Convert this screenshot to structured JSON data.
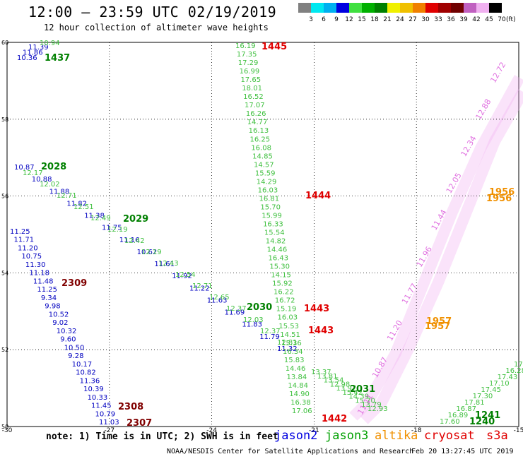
{
  "header": {
    "title": "12:00 — 23:59 UTC 02/19/2019",
    "subtitle": "12 hour collection of altimeter wave heights"
  },
  "legend": {
    "colors": [
      "#808080",
      "#00e8f0",
      "#00b0f0",
      "#0000e0",
      "#40e040",
      "#00b000",
      "#008000",
      "#f0f000",
      "#f0c000",
      "#f08000",
      "#e00000",
      "#a00000",
      "#700000",
      "#c060c0",
      "#f0b0f0",
      "#000000"
    ],
    "labels": [
      "3",
      "6",
      "9",
      "12",
      "15",
      "18",
      "21",
      "24",
      "27",
      "30",
      "33",
      "36",
      "39",
      "42",
      "45",
      "70"
    ],
    "unit": "(ft)"
  },
  "axes": {
    "x_ticks": [
      "-30",
      "-27",
      "-24",
      "-21",
      "-18",
      "-15"
    ],
    "y_ticks": [
      "60",
      "58",
      "56",
      "54",
      "52",
      "50"
    ]
  },
  "tracks": {
    "jason2_a": {
      "color": "#0000c0",
      "labels": [
        "10.36",
        "11.86",
        "11.39"
      ]
    },
    "jason3_a": {
      "color": "#40c040",
      "labels": [
        "10.94"
      ]
    },
    "jason2_b": {
      "color": "#0000c0",
      "labels": [
        "10.87",
        "10.88",
        "11.88",
        "11.82",
        "11.38",
        "11.75",
        "11.16",
        "10.62",
        "11.61",
        "11.92",
        "11.22",
        "11.63",
        "11.69",
        "11.83",
        "11.79",
        "11.32"
      ]
    },
    "jason3_b": {
      "color": "#40c040",
      "labels": [
        "12.17",
        "12.02",
        "12.71",
        "12.51",
        "12.49",
        "12.19",
        "12.42",
        "12.19",
        "12.43",
        "12.54",
        "12.71",
        "12.65",
        "12.37",
        "12.03",
        "12.37",
        "12.81"
      ]
    },
    "jason2_c": {
      "color": "#0000c0",
      "labels": [
        "11.25",
        "11.71",
        "11.20",
        "10.75",
        "11.30",
        "11.18",
        "11.48",
        "11.25",
        "9.34",
        "9.98",
        "10.52",
        "9.02",
        "10.32",
        "9.60",
        "10.50",
        "9.28",
        "10.17",
        "10.82",
        "11.36",
        "10.39",
        "10.33",
        "11.45",
        "10.79",
        "11.03"
      ]
    },
    "jason3_c": {
      "color": "#40c040",
      "labels": [
        "16.19",
        "17.35",
        "17.29",
        "16.99",
        "17.65",
        "18.01",
        "16.52",
        "17.07",
        "16.26",
        "14.77",
        "16.13",
        "16.25",
        "16.08",
        "14.85",
        "14.57",
        "15.59",
        "14.29",
        "16.03",
        "16.81",
        "15.70",
        "15.99",
        "16.33",
        "15.54",
        "14.82",
        "14.46",
        "16.43",
        "15.30",
        "14.15",
        "15.92",
        "16.22",
        "16.72",
        "15.19",
        "16.03",
        "15.53",
        "14.51",
        "15.36",
        "16.34",
        "15.83",
        "14.46",
        "13.84",
        "14.84",
        "14.90",
        "16.38",
        "17.06"
      ]
    },
    "jason3_d": {
      "color": "#40c040",
      "labels": [
        "13.37",
        "13.81",
        "13.54",
        "12.98",
        "13.97",
        "15.42",
        "14.39",
        "15.70",
        "13.79",
        "12.93"
      ]
    },
    "jason3_e": {
      "color": "#40c040",
      "labels": [
        "17.60",
        "16.89",
        "16.87",
        "17.81",
        "17.30",
        "17.45",
        "17.10",
        "17.43",
        "16.28",
        "17.61"
      ]
    },
    "cryo": {
      "color": "#e070e0",
      "labels": [
        "12.72",
        "12.88",
        "12.34",
        "12.05",
        "11.44",
        "11.96",
        "11.77",
        "11.20",
        "10.87",
        "11.11"
      ]
    }
  },
  "time_labels": [
    {
      "text": "1437",
      "color": "#008000"
    },
    {
      "text": "1445",
      "color": "#e00000"
    },
    {
      "text": "2028",
      "color": "#008000"
    },
    {
      "text": "1444",
      "color": "#e00000"
    },
    {
      "text": "1956",
      "color": "#f09000"
    },
    {
      "text": "1956",
      "color": "#f09000"
    },
    {
      "text": "2029",
      "color": "#008000"
    },
    {
      "text": "2309",
      "color": "#800000"
    },
    {
      "text": "2030",
      "color": "#008000"
    },
    {
      "text": "1443",
      "color": "#e00000"
    },
    {
      "text": "1443",
      "color": "#e00000"
    },
    {
      "text": "1957",
      "color": "#f09000"
    },
    {
      "text": "1957",
      "color": "#f09000"
    },
    {
      "text": "2031",
      "color": "#008000"
    },
    {
      "text": "2308",
      "color": "#800000"
    },
    {
      "text": "2307",
      "color": "#800000"
    },
    {
      "text": "1442",
      "color": "#e00000"
    },
    {
      "text": "1241",
      "color": "#008000"
    },
    {
      "text": "1240",
      "color": "#008000"
    }
  ],
  "footer": {
    "note": "note: 1) Time is in UTC; 2) SWH is in feet",
    "satellites": [
      {
        "name": "jason2",
        "color": "#0000e0"
      },
      {
        "name": "jason3",
        "color": "#00a000"
      },
      {
        "name": "altika",
        "color": "#f09000"
      },
      {
        "name": "cryosat",
        "color": "#e00000"
      },
      {
        "name": "s3a",
        "color": "#e00000"
      }
    ],
    "credit": "NOAA/NESDIS Center for Satellite Applications and Research",
    "timestamp": "Feb 20 13:27:45 UTC 2019"
  }
}
